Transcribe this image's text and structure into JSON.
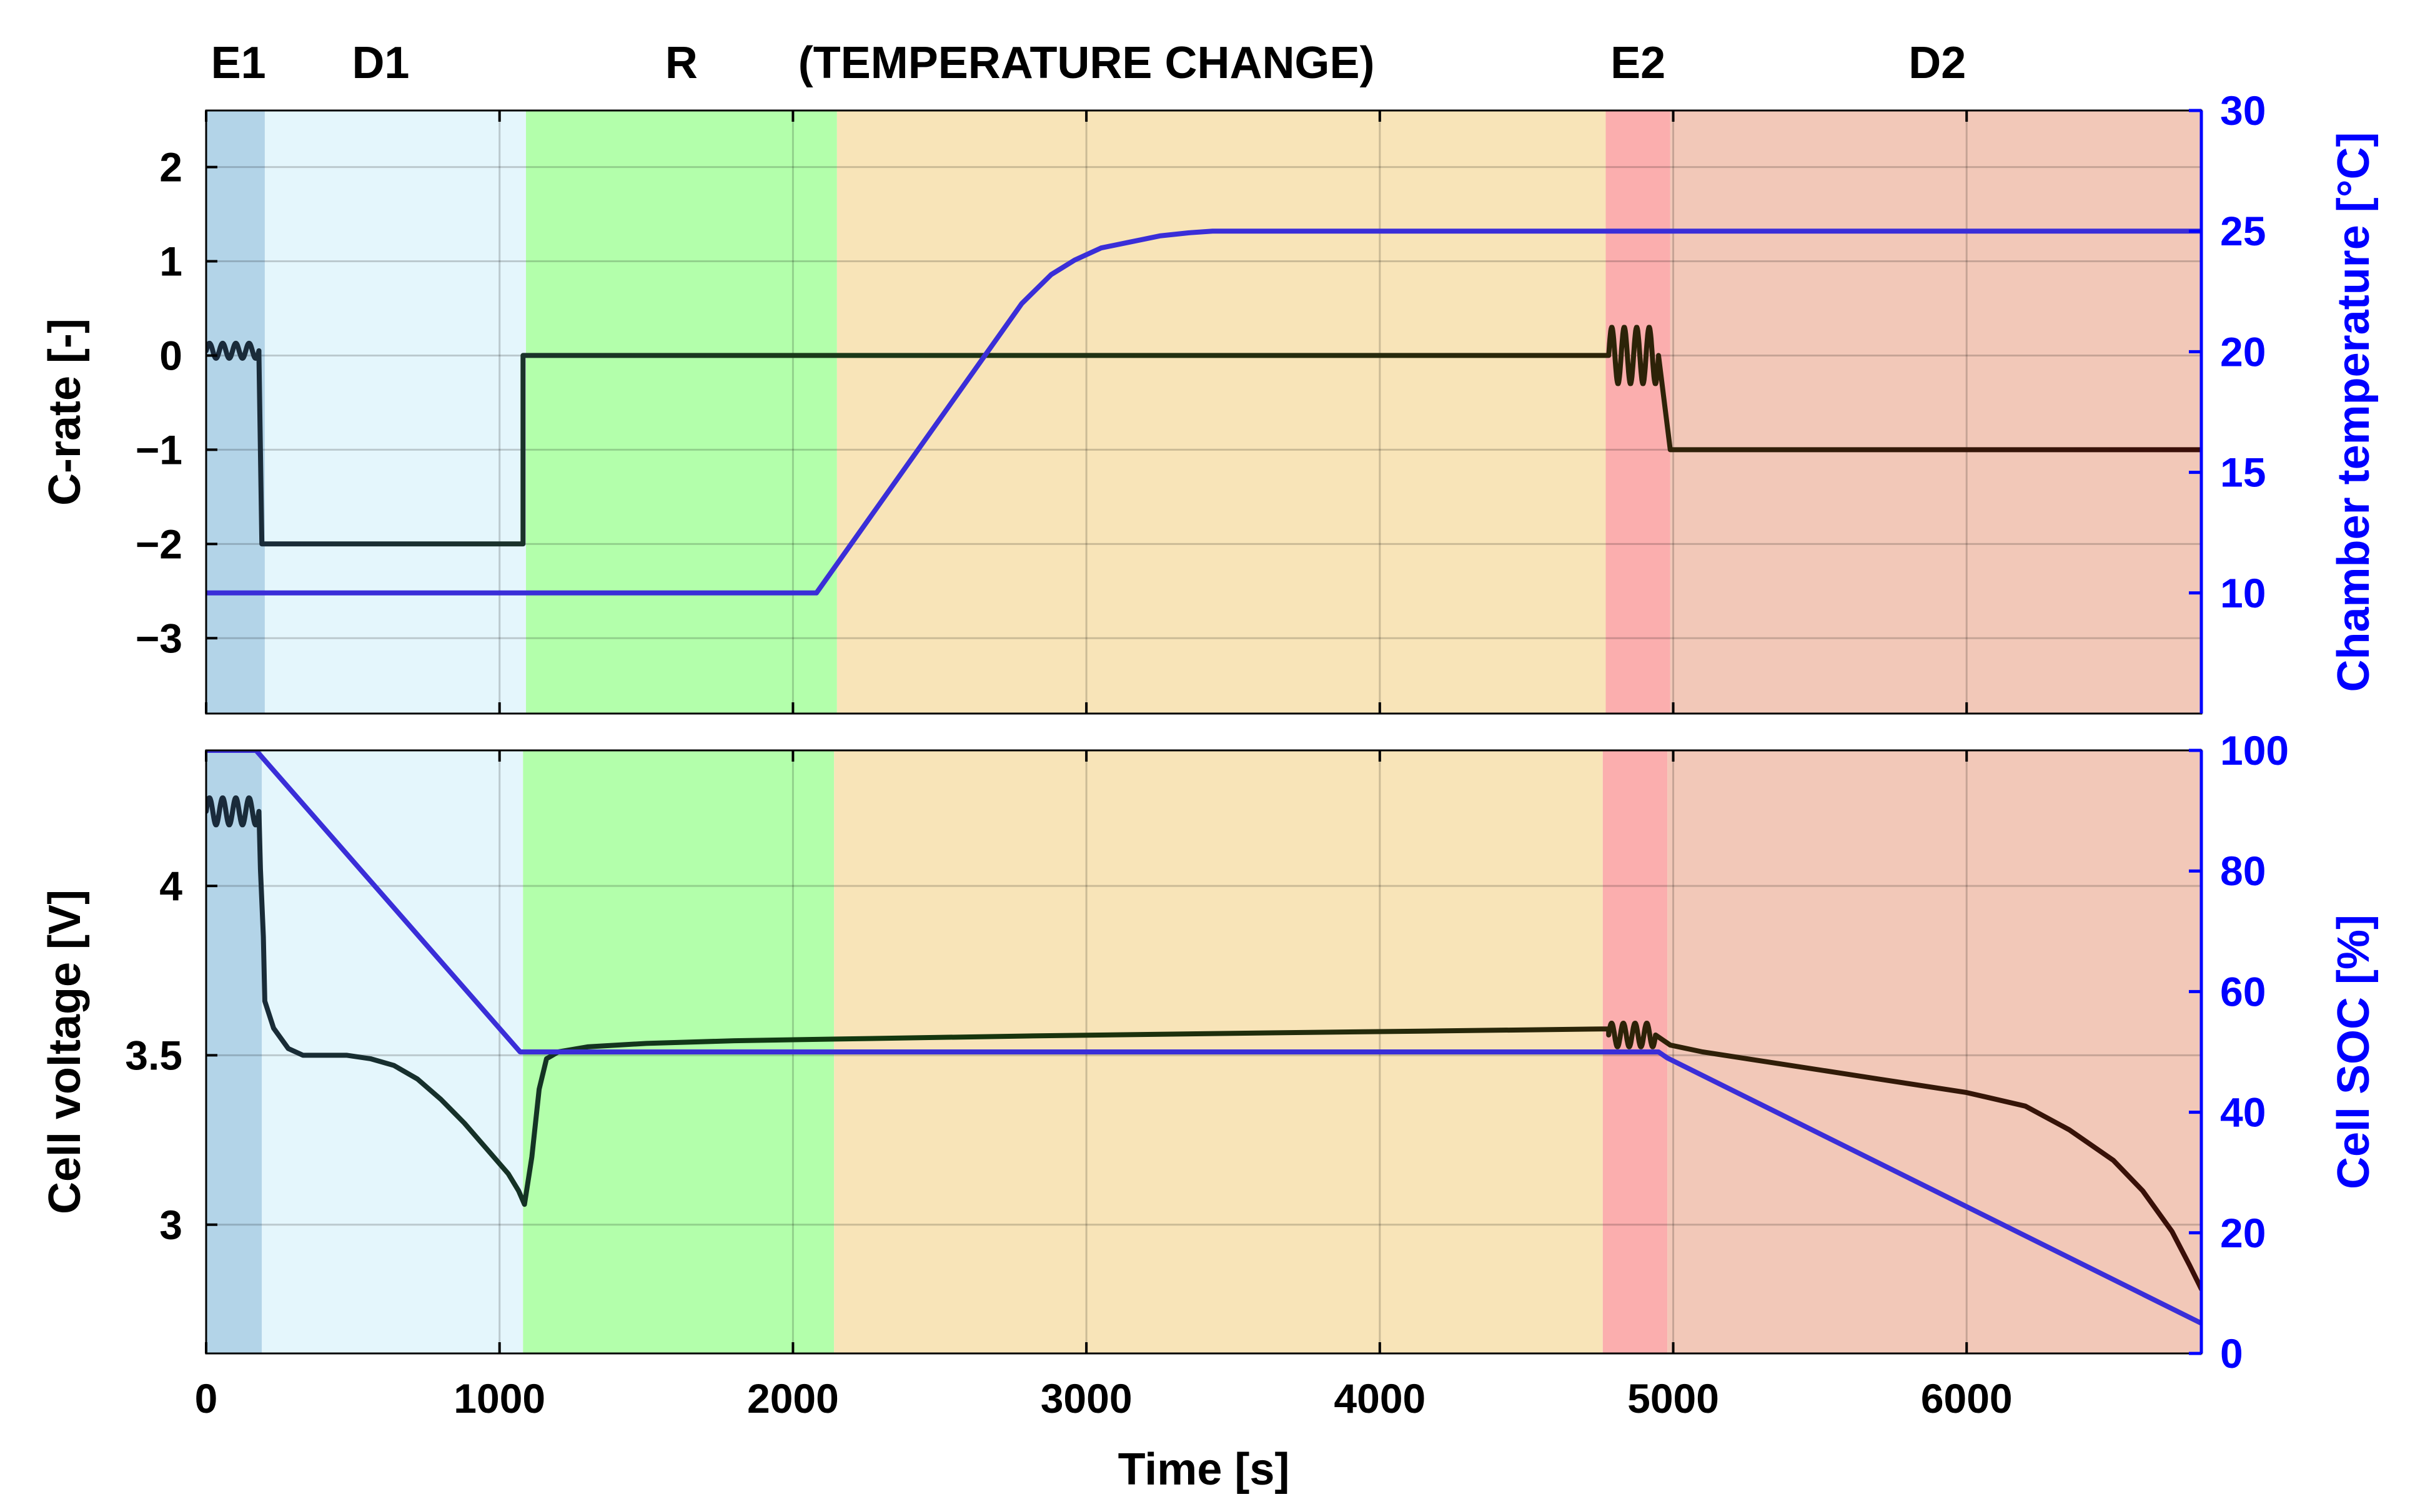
{
  "chart_data": [
    {
      "type": "line",
      "title": "",
      "phases": [
        {
          "name": "E1",
          "label": "E1",
          "start": 0,
          "end": 200,
          "color": "#b3d4e8"
        },
        {
          "name": "D1",
          "label": "D1",
          "start": 200,
          "end": 1090,
          "color": "#e4f6fc"
        },
        {
          "name": "R",
          "label": "R",
          "start": 1090,
          "end": 2150,
          "color": "#b3ffab"
        },
        {
          "name": "TC",
          "label": "(TEMPERATURE CHANGE)",
          "start": 2150,
          "end": 4770,
          "color": "#f8e4b8"
        },
        {
          "name": "E2",
          "label": "E2",
          "start": 4770,
          "end": 4990,
          "color": "#fbaeae"
        },
        {
          "name": "D2",
          "label": "D2",
          "start": 4990,
          "end": 6800,
          "color": "#f2c8b8"
        }
      ],
      "xlim": [
        0,
        6800
      ],
      "xlabel": "Time [s]",
      "xticks": [
        0,
        1000,
        2000,
        3000,
        4000,
        5000,
        6000
      ],
      "left_axis": {
        "label": "C-rate [-]",
        "ylim": [
          -3.8,
          2.6
        ],
        "ticks": [
          2,
          1,
          0,
          -1,
          -2,
          -3
        ],
        "tick_labels": [
          "2",
          "1",
          "0",
          "−1",
          "−2",
          "−3"
        ],
        "color": "#000000"
      },
      "right_axis": {
        "label": "Chamber temperature [°C]",
        "ylim": [
          5,
          30
        ],
        "ticks": [
          10,
          15,
          20,
          25,
          30
        ],
        "color": "#0000ff"
      },
      "series": [
        {
          "name": "C-rate",
          "axis": "left",
          "color": "#1e1e1e",
          "segments": [
            {
              "kind": "wave",
              "x_start": 0,
              "x_end": 180,
              "center": 0.05,
              "amplitude": 0.08,
              "cycles": 4
            },
            {
              "kind": "points",
              "x": [
                180,
                190,
                1080,
                1080,
                4780
              ],
              "y": [
                0.0,
                -2.0,
                -2.0,
                0.0,
                0.0
              ]
            },
            {
              "kind": "wave",
              "x_start": 4780,
              "x_end": 4950,
              "center": 0.0,
              "amplitude": 0.3,
              "cycles": 4
            },
            {
              "kind": "points",
              "x": [
                4950,
                4990,
                6800
              ],
              "y": [
                0.0,
                -1.0,
                -1.0
              ]
            }
          ]
        },
        {
          "name": "Chamber temperature",
          "axis": "right",
          "color": "#3a2ed8",
          "segments": [
            {
              "kind": "points",
              "x": [
                0,
                2080,
                2150,
                2780,
                2880,
                2960,
                3050,
                3150,
                3250,
                3350,
                3430,
                6800
              ],
              "y": [
                10,
                10,
                11.2,
                22.0,
                23.2,
                23.8,
                24.3,
                24.55,
                24.8,
                24.93,
                25,
                25
              ]
            }
          ]
        }
      ]
    },
    {
      "type": "line",
      "title": "",
      "phases": [
        {
          "name": "E1",
          "start": 0,
          "end": 190,
          "color": "#b3d4e8"
        },
        {
          "name": "D1",
          "start": 190,
          "end": 1080,
          "color": "#e4f6fc"
        },
        {
          "name": "R",
          "start": 1080,
          "end": 2140,
          "color": "#b3ffab"
        },
        {
          "name": "TC",
          "start": 2140,
          "end": 4760,
          "color": "#f8e4b8"
        },
        {
          "name": "E2",
          "start": 4760,
          "end": 4980,
          "color": "#fbaeae"
        },
        {
          "name": "D2",
          "start": 4980,
          "end": 6800,
          "color": "#f2c8b8"
        }
      ],
      "xlim": [
        0,
        6800
      ],
      "xlabel": "Time [s]",
      "xticks": [
        0,
        1000,
        2000,
        3000,
        4000,
        5000,
        6000
      ],
      "left_axis": {
        "label": "Cell voltage [V]",
        "ylim": [
          2.62,
          4.4
        ],
        "ticks": [
          4,
          3.5,
          3
        ],
        "tick_labels": [
          "4",
          "3.5",
          "3"
        ],
        "color": "#000000"
      },
      "right_axis": {
        "label": "Cell SOC [%]",
        "ylim": [
          0,
          100
        ],
        "ticks": [
          100,
          80,
          60,
          40,
          20,
          0
        ],
        "color": "#0000ff"
      },
      "series": [
        {
          "name": "Cell voltage",
          "axis": "left",
          "color": "#1e1e1e",
          "segments": [
            {
              "kind": "wave",
              "x_start": 0,
              "x_end": 180,
              "center": 4.22,
              "amplitude": 0.04,
              "cycles": 4
            },
            {
              "kind": "points",
              "x": [
                180,
                185,
                195,
                200,
                230,
                280,
                330,
                400,
                480,
                560,
                640,
                720,
                800,
                880,
                960,
                1030,
                1065,
                1085,
                1110,
                1135,
                1160,
                1200,
                1300,
                1500,
                1800,
                2150,
                2800,
                3500,
                4200,
                4780
              ],
              "y": [
                4.22,
                4.05,
                3.85,
                3.66,
                3.58,
                3.52,
                3.5,
                3.5,
                3.5,
                3.49,
                3.47,
                3.43,
                3.37,
                3.3,
                3.22,
                3.15,
                3.1,
                3.06,
                3.2,
                3.4,
                3.49,
                3.51,
                3.525,
                3.535,
                3.543,
                3.548,
                3.557,
                3.565,
                3.572,
                3.578
              ]
            },
            {
              "kind": "wave",
              "x_start": 4780,
              "x_end": 4940,
              "center": 3.56,
              "amplitude": 0.035,
              "cycles": 4
            },
            {
              "kind": "points",
              "x": [
                4940,
                4990,
                5100,
                5400,
                5700,
                6000,
                6200,
                6350,
                6500,
                6600,
                6700,
                6760,
                6800
              ],
              "y": [
                3.56,
                3.53,
                3.51,
                3.47,
                3.43,
                3.39,
                3.35,
                3.28,
                3.19,
                3.1,
                2.98,
                2.88,
                2.81
              ]
            }
          ]
        },
        {
          "name": "Cell SOC",
          "axis": "right",
          "color": "#3a2ed8",
          "segments": [
            {
              "kind": "points",
              "x": [
                0,
                170,
                1070,
                4950,
                4980,
                6800
              ],
              "y": [
                100,
                100,
                50,
                50,
                49,
                5
              ]
            }
          ]
        }
      ]
    }
  ]
}
